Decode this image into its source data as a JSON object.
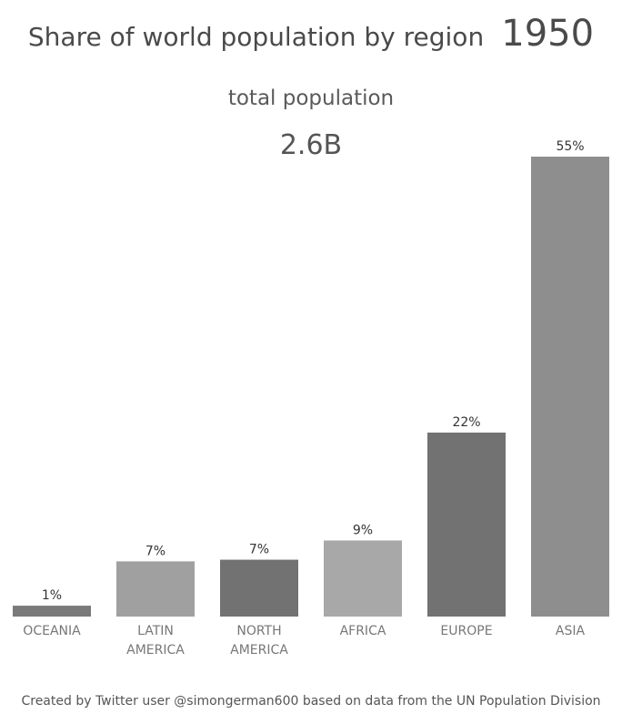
{
  "header": {
    "title": "Share of world population by region",
    "year": "1950",
    "subtitle": "total population",
    "total": "2.6B"
  },
  "footer": {
    "credit": "Created by Twitter user @simongerman600 based on data from the UN Population Division"
  },
  "chart_data": {
    "type": "bar",
    "categories": [
      [
        "OCEANIA"
      ],
      [
        "LATIN",
        "AMERICA"
      ],
      [
        "NORTH",
        "AMERICA"
      ],
      [
        "AFRICA"
      ],
      [
        "EUROPE"
      ],
      [
        "ASIA"
      ]
    ],
    "values": [
      1.3,
      6.6,
      6.8,
      9.1,
      22.0,
      55.0
    ],
    "value_labels": [
      "1%",
      "7%",
      "7%",
      "9%",
      "22%",
      "55%"
    ],
    "colors": [
      "#7a7a7a",
      "#a0a0a0",
      "#727272",
      "#a8a8a8",
      "#727272",
      "#8e8e8e"
    ],
    "title": "Share of world population by region",
    "xlabel": "",
    "ylabel": "",
    "ylim": [
      0,
      55
    ]
  }
}
